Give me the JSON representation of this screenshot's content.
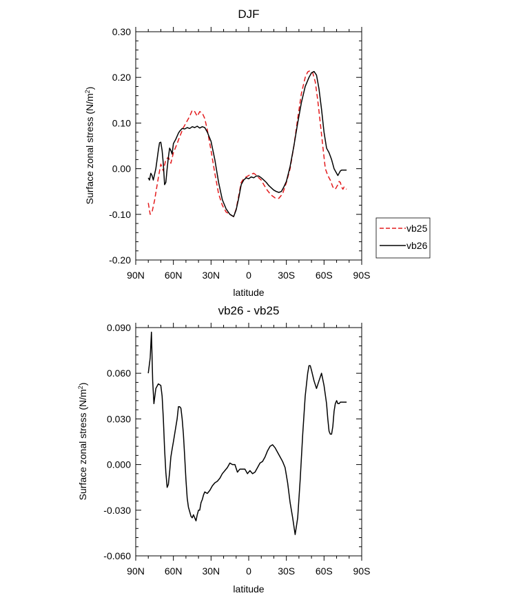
{
  "chart_data": [
    {
      "type": "line",
      "title": "DJF",
      "xlabel": "latitude",
      "ylabel": "Surface zonal stress (N/m",
      "ylabel_sup": "2",
      "ylabel_close": ")",
      "xlim": [
        -90,
        90
      ],
      "ylim": [
        -0.2,
        0.3
      ],
      "xticks": [
        {
          "v": -90,
          "label": "90N"
        },
        {
          "v": -60,
          "label": "60N"
        },
        {
          "v": -30,
          "label": "30N"
        },
        {
          "v": 0,
          "label": "0"
        },
        {
          "v": 30,
          "label": "30S"
        },
        {
          "v": 60,
          "label": "60S"
        },
        {
          "v": 90,
          "label": "90S"
        }
      ],
      "yticks": [
        {
          "v": -0.2,
          "label": "-0.20"
        },
        {
          "v": -0.1,
          "label": "-0.10"
        },
        {
          "v": 0.0,
          "label": "0.00"
        },
        {
          "v": 0.1,
          "label": "0.10"
        },
        {
          "v": 0.2,
          "label": "0.20"
        },
        {
          "v": 0.3,
          "label": "0.30"
        }
      ],
      "grid": false,
      "legend": "right",
      "series": [
        {
          "name": "vb25",
          "color": "#e31a1c",
          "dash": true,
          "x": [
            -80,
            -78.5,
            -77,
            -75,
            -72,
            -70,
            -68,
            -66,
            -64,
            -62,
            -60,
            -57,
            -55,
            -52,
            -50,
            -47,
            -45,
            -43,
            -41,
            -39,
            -37,
            -35,
            -33,
            -30,
            -27,
            -24,
            -21,
            -18,
            -15,
            -12,
            -10,
            -8,
            -6,
            -4,
            -2,
            0,
            2,
            4,
            6,
            8,
            10,
            12,
            15,
            18,
            21,
            24,
            27,
            30,
            33,
            36,
            39,
            42,
            45,
            47,
            49,
            51,
            53,
            55,
            57,
            59,
            61,
            63,
            65,
            67,
            69,
            71,
            72,
            73,
            74,
            75,
            76,
            77,
            78
          ],
          "y": [
            -0.075,
            -0.1,
            -0.095,
            -0.07,
            -0.02,
            0.01,
            -0.005,
            0.02,
            0.025,
            0.012,
            0.035,
            0.055,
            0.07,
            0.09,
            0.1,
            0.115,
            0.128,
            0.125,
            0.115,
            0.125,
            0.122,
            0.11,
            0.085,
            0.04,
            -0.01,
            -0.055,
            -0.08,
            -0.095,
            -0.1,
            -0.105,
            -0.088,
            -0.06,
            -0.03,
            -0.022,
            -0.018,
            -0.015,
            -0.012,
            -0.01,
            -0.014,
            -0.02,
            -0.025,
            -0.035,
            -0.048,
            -0.058,
            -0.064,
            -0.065,
            -0.055,
            -0.03,
            0.0,
            0.05,
            0.11,
            0.165,
            0.2,
            0.212,
            0.215,
            0.21,
            0.19,
            0.15,
            0.1,
            0.05,
            0.0,
            -0.015,
            -0.025,
            -0.04,
            -0.045,
            -0.035,
            -0.028,
            -0.03,
            -0.04,
            -0.045,
            -0.04,
            -0.043,
            -0.045
          ]
        },
        {
          "name": "vb26",
          "color": "#000000",
          "dash": false,
          "x": [
            -80,
            -79,
            -78,
            -77,
            -76,
            -74,
            -72,
            -71,
            -70,
            -69,
            -68,
            -67,
            -66,
            -65,
            -64,
            -63,
            -62,
            -61,
            -60,
            -58,
            -56,
            -55,
            -53,
            -51,
            -49,
            -47,
            -45,
            -43,
            -41,
            -39,
            -37,
            -35,
            -33,
            -30,
            -27,
            -24,
            -21,
            -18,
            -15,
            -12,
            -10,
            -8,
            -6,
            -4,
            -2,
            0,
            2,
            4,
            6,
            8,
            10,
            12,
            14,
            16,
            18,
            20,
            22,
            24,
            26,
            28,
            30,
            33,
            36,
            39,
            42,
            45,
            48,
            50,
            52,
            54,
            55,
            56,
            58,
            60,
            62,
            64,
            66,
            68,
            70,
            71,
            72,
            73,
            74,
            75,
            76,
            77,
            78
          ],
          "y": [
            -0.02,
            -0.025,
            -0.01,
            -0.015,
            -0.025,
            0.0,
            0.04,
            0.057,
            0.058,
            0.04,
            0.01,
            -0.035,
            -0.03,
            0.0,
            0.025,
            0.045,
            0.04,
            0.032,
            0.055,
            0.065,
            0.078,
            0.082,
            0.088,
            0.087,
            0.09,
            0.088,
            0.092,
            0.09,
            0.093,
            0.089,
            0.092,
            0.09,
            0.08,
            0.06,
            0.02,
            -0.03,
            -0.068,
            -0.088,
            -0.1,
            -0.105,
            -0.09,
            -0.065,
            -0.035,
            -0.025,
            -0.02,
            -0.022,
            -0.018,
            -0.02,
            -0.016,
            -0.016,
            -0.02,
            -0.025,
            -0.03,
            -0.037,
            -0.042,
            -0.047,
            -0.05,
            -0.052,
            -0.05,
            -0.04,
            -0.028,
            0.005,
            0.05,
            0.1,
            0.145,
            0.18,
            0.2,
            0.21,
            0.213,
            0.205,
            0.19,
            0.175,
            0.13,
            0.08,
            0.045,
            0.035,
            0.02,
            0.0,
            -0.01,
            -0.015,
            -0.01,
            -0.005,
            -0.003,
            -0.003,
            -0.003,
            -0.003,
            -0.003
          ]
        }
      ]
    },
    {
      "type": "line",
      "title": "vb26 - vb25",
      "xlabel": "latitude",
      "ylabel": "Surface zonal stress (N/m",
      "ylabel_sup": "2",
      "ylabel_close": ")",
      "xlim": [
        -90,
        90
      ],
      "ylim": [
        -0.06,
        0.09
      ],
      "xticks": [
        {
          "v": -90,
          "label": "90N"
        },
        {
          "v": -60,
          "label": "60N"
        },
        {
          "v": -30,
          "label": "30N"
        },
        {
          "v": 0,
          "label": "0"
        },
        {
          "v": 30,
          "label": "30S"
        },
        {
          "v": 60,
          "label": "60S"
        },
        {
          "v": 90,
          "label": "90S"
        }
      ],
      "yticks": [
        {
          "v": -0.06,
          "label": "-0.060"
        },
        {
          "v": -0.03,
          "label": "-0.030"
        },
        {
          "v": 0.0,
          "label": "0.000"
        },
        {
          "v": 0.03,
          "label": "0.030"
        },
        {
          "v": 0.06,
          "label": "0.060"
        },
        {
          "v": 0.09,
          "label": "0.090"
        }
      ],
      "grid": false,
      "series": [
        {
          "name": "",
          "color": "#000000",
          "dash": false,
          "x": [
            -80,
            -78.5,
            -77.5,
            -76.5,
            -75.5,
            -74,
            -72,
            -70,
            -69,
            -68,
            -67,
            -66,
            -65,
            -64,
            -63,
            -62,
            -61,
            -60,
            -59,
            -58,
            -57,
            -56,
            -55,
            -54,
            -53,
            -52,
            -51,
            -50,
            -49,
            -48,
            -47,
            -46,
            -45,
            -44,
            -43,
            -42,
            -41,
            -40,
            -39,
            -38,
            -37,
            -36,
            -35,
            -33,
            -31,
            -29,
            -27,
            -25,
            -23,
            -21,
            -19,
            -17,
            -15,
            -13,
            -11,
            -9,
            -7,
            -5,
            -3,
            -1,
            1,
            3,
            5,
            7,
            9,
            11,
            13,
            15,
            17,
            19,
            21,
            23,
            25,
            27,
            29,
            31,
            33,
            35,
            37,
            39,
            41,
            43,
            45,
            47,
            48,
            49,
            50,
            52,
            54,
            56,
            58,
            60,
            62,
            63,
            64,
            65,
            66,
            67,
            68,
            69,
            70,
            71,
            72,
            73,
            74,
            75,
            76,
            77,
            78
          ],
          "y": [
            0.06,
            0.07,
            0.087,
            0.055,
            0.04,
            0.05,
            0.053,
            0.052,
            0.045,
            0.03,
            0.01,
            -0.005,
            -0.015,
            -0.013,
            -0.005,
            0.005,
            0.01,
            0.015,
            0.02,
            0.025,
            0.03,
            0.038,
            0.038,
            0.037,
            0.03,
            0.02,
            0.005,
            -0.01,
            -0.022,
            -0.028,
            -0.031,
            -0.034,
            -0.035,
            -0.033,
            -0.035,
            -0.037,
            -0.033,
            -0.03,
            -0.03,
            -0.025,
            -0.023,
            -0.02,
            -0.018,
            -0.019,
            -0.017,
            -0.014,
            -0.012,
            -0.011,
            -0.009,
            -0.006,
            -0.004,
            -0.002,
            0.001,
            0.0,
            0.0,
            -0.005,
            -0.003,
            -0.003,
            -0.003,
            -0.006,
            -0.004,
            -0.006,
            -0.005,
            -0.002,
            0.001,
            0.002,
            0.005,
            0.009,
            0.012,
            0.013,
            0.011,
            0.008,
            0.005,
            0.002,
            -0.002,
            -0.012,
            -0.025,
            -0.035,
            -0.046,
            -0.035,
            -0.01,
            0.02,
            0.045,
            0.06,
            0.065,
            0.065,
            0.062,
            0.055,
            0.05,
            0.055,
            0.06,
            0.052,
            0.04,
            0.03,
            0.022,
            0.02,
            0.02,
            0.025,
            0.035,
            0.04,
            0.042,
            0.04,
            0.04,
            0.041,
            0.041,
            0.041,
            0.041,
            0.041,
            0.041
          ]
        }
      ]
    }
  ]
}
